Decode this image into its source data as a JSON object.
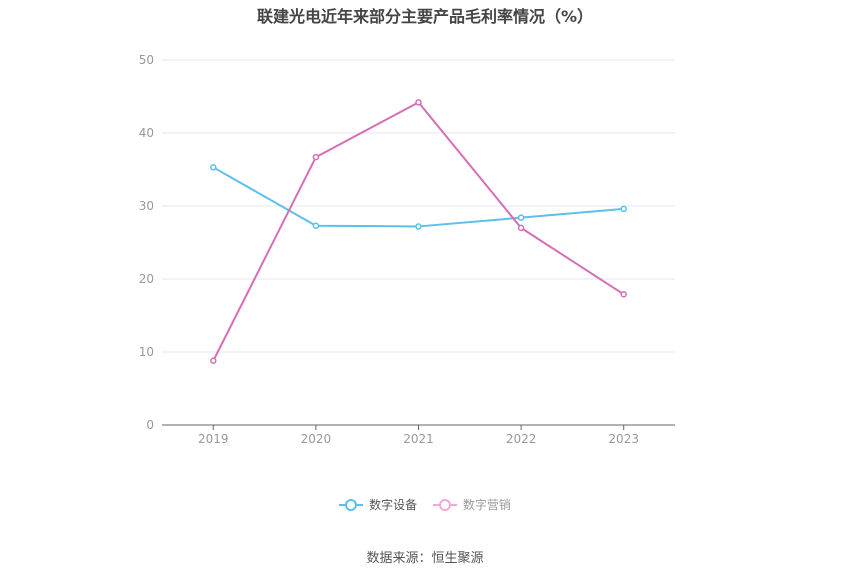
{
  "chart_data": {
    "type": "line",
    "title": "联建光电近年来部分主要产品毛利率情况（%）",
    "categories": [
      "2019",
      "2020",
      "2021",
      "2022",
      "2023"
    ],
    "ylim": [
      0,
      50
    ],
    "yticks": [
      0,
      10,
      20,
      30,
      40,
      50
    ],
    "grid": true,
    "legend_position": "bottom",
    "series": [
      {
        "name": "数字设备",
        "color": "#5bc0eb",
        "values": [
          35.3,
          27.3,
          27.2,
          28.4,
          29.6
        ]
      },
      {
        "name": "数字营销",
        "color": "#d46fb5",
        "values": [
          8.8,
          36.7,
          44.2,
          27.0,
          17.9
        ]
      }
    ]
  },
  "source": "数据来源：恒生聚源"
}
